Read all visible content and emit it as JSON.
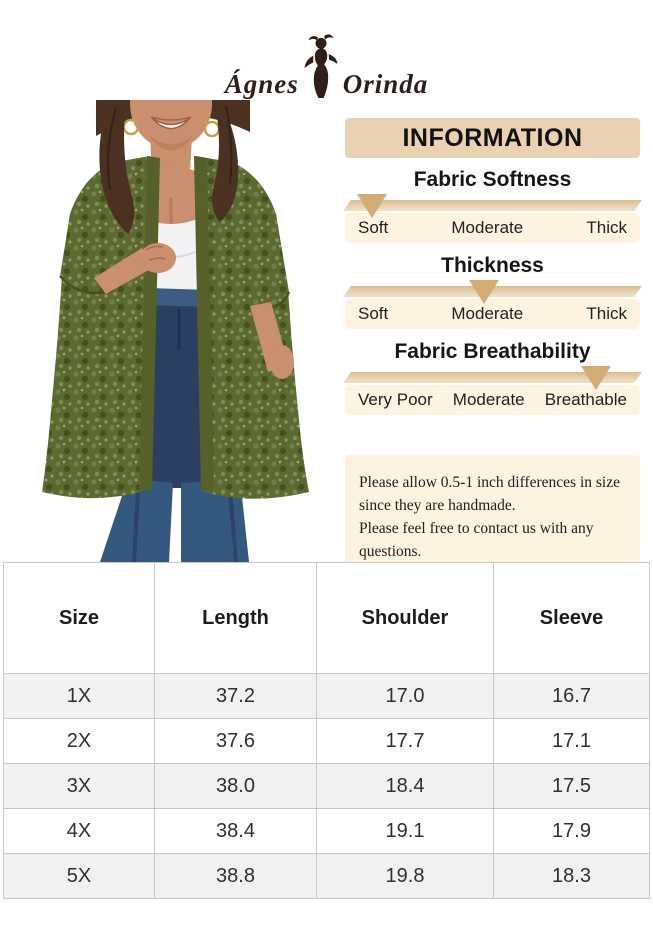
{
  "brand": {
    "name_part1": "Ágnes",
    "name_part2": "Orinda"
  },
  "info": {
    "title": "INFORMATION",
    "scales": [
      {
        "title": "Fabric Softness",
        "labels": [
          "Soft",
          "Moderate",
          "Thick"
        ],
        "indicator": "Soft",
        "indicator_percent": 9
      },
      {
        "title": "Thickness",
        "labels": [
          "Soft",
          "Moderate",
          "Thick"
        ],
        "indicator": "Moderate",
        "indicator_percent": 47
      },
      {
        "title": "Fabric Breathability",
        "labels": [
          "Very Poor",
          "Moderate",
          "Breathable"
        ],
        "indicator": "Breathable",
        "indicator_percent": 85
      }
    ],
    "note_lines": [
      "Please allow 0.5-1 inch differences in size",
      "since they are handmade.",
      "Please feel free to contact us with any questions."
    ]
  },
  "size_table": {
    "headers": [
      "Size",
      "Length",
      "Shoulder",
      "Sleeve"
    ],
    "rows": [
      [
        "1X",
        "37.2",
        "17.0",
        "16.7"
      ],
      [
        "2X",
        "37.6",
        "17.7",
        "17.1"
      ],
      [
        "3X",
        "38.0",
        "18.4",
        "17.5"
      ],
      [
        "4X",
        "38.4",
        "19.1",
        "17.9"
      ],
      [
        "5X",
        "38.8",
        "19.8",
        "18.3"
      ]
    ]
  },
  "colors": {
    "info_header_bg": "#e9d2b2",
    "ribbon": "#e0c59c",
    "indicator_triangle": "#d2ab76",
    "labels_bg": "#fdf3e0",
    "note_bg": "#fcf2df",
    "table_alt_row": "#f1f1f2",
    "table_border": "#c7c7c7",
    "cardigan_olive": "#5c6a31",
    "denim_blue": "#2e4a70",
    "brand_text": "#2e2019"
  }
}
